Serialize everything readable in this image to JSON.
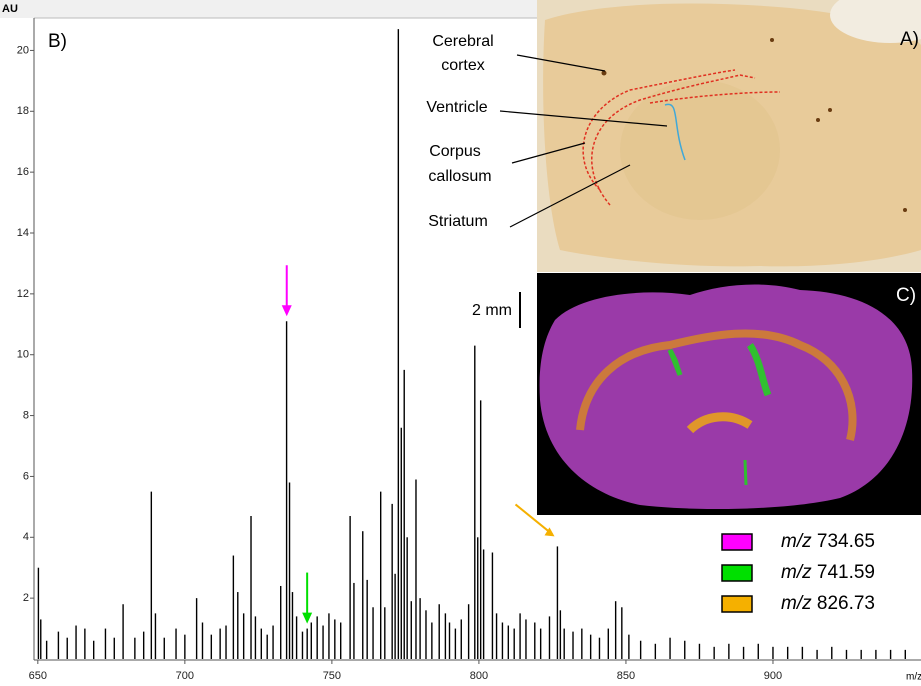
{
  "chart_data": {
    "type": "stem",
    "y_label": "AU",
    "x_label": "m/z",
    "xlim": [
      648.7,
      950
    ],
    "xticks": [
      650,
      700,
      750,
      800,
      850,
      900
    ],
    "ylim": [
      0,
      21
    ],
    "yticks": [
      2,
      4,
      6,
      8,
      10,
      12,
      14,
      16,
      18,
      20
    ],
    "color": "#000000",
    "x": [
      650.2,
      651,
      653,
      657,
      660,
      663,
      666,
      669,
      673,
      676,
      679,
      683,
      686,
      688.6,
      690,
      693,
      697,
      700,
      704,
      706,
      709,
      712,
      714,
      716.5,
      718,
      720,
      722.5,
      724,
      726,
      728,
      730,
      732.6,
      734.6,
      735.6,
      736.6,
      738,
      740,
      741.6,
      743,
      745,
      747,
      749,
      751,
      753,
      756.2,
      757.5,
      760.5,
      762,
      764,
      766.6,
      768,
      770.5,
      771.5,
      772.6,
      773.6,
      774.6,
      775.6,
      777,
      778.6,
      780,
      782,
      784,
      786.5,
      788.6,
      790,
      792,
      794,
      796.5,
      798.6,
      799.6,
      800.6,
      801.6,
      804.6,
      806,
      808,
      810,
      812,
      814,
      816,
      819,
      821,
      824,
      826.7,
      827.7,
      829,
      832,
      835,
      838,
      841,
      844,
      846.5,
      848.6,
      851,
      855,
      860,
      865,
      870,
      875,
      880,
      885,
      890,
      895,
      900,
      905,
      910,
      915,
      920,
      925,
      930,
      935,
      940,
      945
    ],
    "values": [
      3.0,
      1.3,
      0.6,
      0.9,
      0.7,
      1.1,
      1.0,
      0.6,
      1.0,
      0.7,
      1.8,
      0.7,
      0.9,
      5.5,
      1.5,
      0.7,
      1.0,
      0.8,
      2.0,
      1.2,
      0.8,
      1.0,
      1.1,
      3.4,
      2.2,
      1.5,
      4.7,
      1.4,
      1.0,
      0.8,
      1.1,
      2.4,
      11.1,
      5.8,
      2.2,
      1.4,
      0.9,
      1.0,
      1.2,
      1.4,
      1.1,
      1.5,
      1.3,
      1.2,
      4.7,
      2.5,
      4.2,
      2.6,
      1.7,
      5.5,
      1.7,
      5.1,
      2.8,
      20.7,
      7.6,
      9.5,
      4.0,
      1.9,
      5.9,
      2.0,
      1.6,
      1.2,
      1.8,
      1.5,
      1.2,
      1.0,
      1.3,
      1.8,
      10.3,
      4.0,
      8.5,
      3.6,
      3.5,
      1.5,
      1.2,
      1.1,
      1.0,
      1.5,
      1.3,
      1.2,
      1.0,
      1.4,
      3.7,
      1.6,
      1.0,
      0.9,
      1.0,
      0.8,
      0.7,
      1.0,
      1.9,
      1.7,
      0.8,
      0.6,
      0.5,
      0.7,
      0.6,
      0.5,
      0.4,
      0.5,
      0.4,
      0.5,
      0.4,
      0.4,
      0.4,
      0.3,
      0.4,
      0.3,
      0.3,
      0.3,
      0.3,
      0.3
    ],
    "markers": [
      {
        "mz": 734.65,
        "color": "#ff00ff"
      },
      {
        "mz": 741.59,
        "color": "#00e000"
      },
      {
        "mz": 826.73,
        "color": "#f5b000"
      }
    ],
    "legend_prefix": "m/z",
    "panel_labels": [
      "B)",
      "A)",
      "C)"
    ],
    "tissue_labels": [
      [
        "Cerebral",
        "cortex"
      ],
      [
        "Ventricle"
      ],
      [
        "Corpus",
        "callosum"
      ],
      [
        "Striatum"
      ]
    ],
    "scale_bar": "2 mm"
  }
}
